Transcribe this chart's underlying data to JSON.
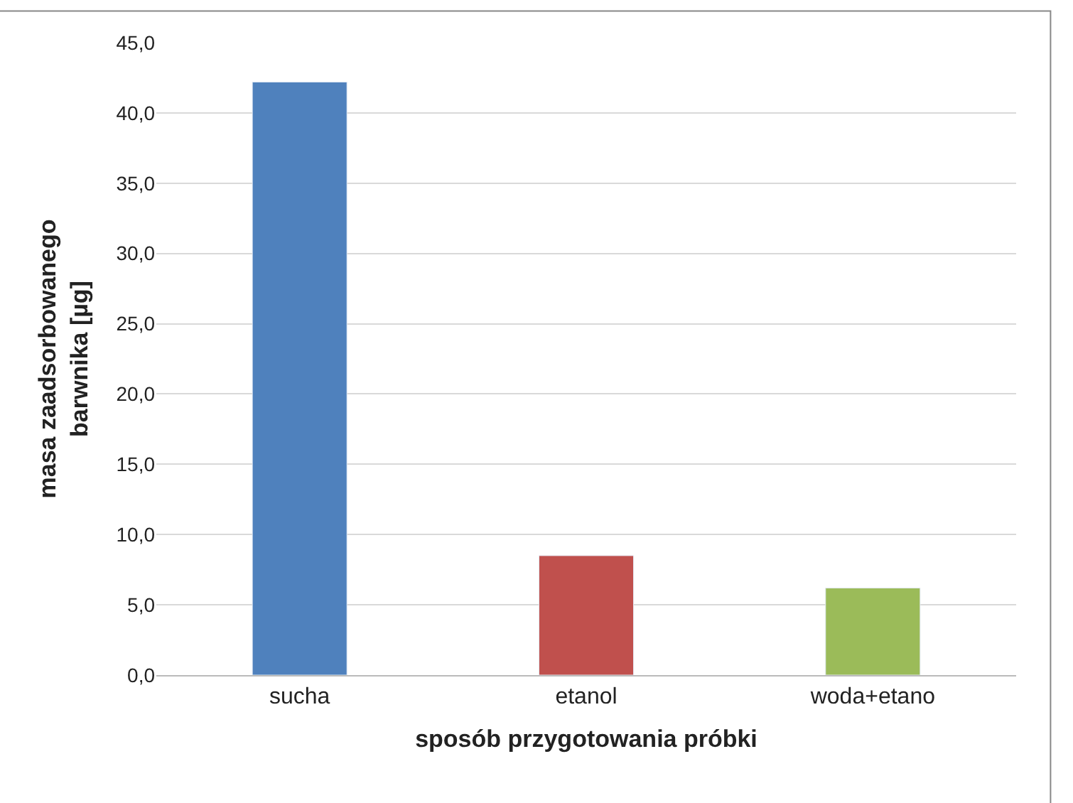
{
  "chart_data": {
    "type": "bar",
    "categories": [
      "sucha",
      "etanol",
      "woda+etano"
    ],
    "values": [
      42.2,
      8.5,
      6.2
    ],
    "colors": [
      "#4f81bd",
      "#c0504d",
      "#9bbb59"
    ],
    "xlabel": "sposób przygotowania próbki",
    "ylabel": "masa zaadsorbowanego\nbarwnika [µg]",
    "ylim": [
      0,
      45
    ],
    "yticks": [
      {
        "value": 0,
        "label": "0,0"
      },
      {
        "value": 5,
        "label": "5,0"
      },
      {
        "value": 10,
        "label": "10,0"
      },
      {
        "value": 15,
        "label": "15,0"
      },
      {
        "value": 20,
        "label": "20,0"
      },
      {
        "value": 25,
        "label": "25,0"
      },
      {
        "value": 30,
        "label": "30,0"
      },
      {
        "value": 35,
        "label": "35,0"
      },
      {
        "value": 40,
        "label": "40,0"
      },
      {
        "value": 45,
        "label": "45,0"
      }
    ],
    "grid": "y"
  }
}
